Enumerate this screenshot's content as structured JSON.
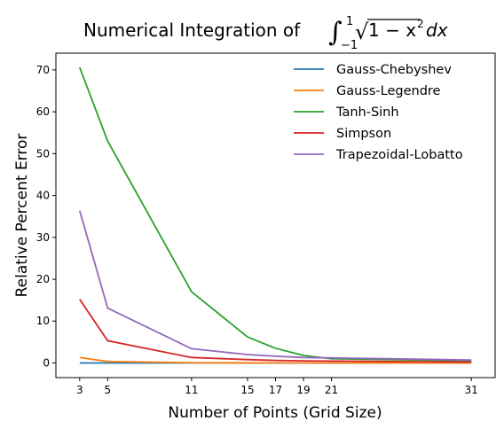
{
  "chart_data": {
    "type": "line",
    "title_prefix": "Numerical Integration of ",
    "title_math": {
      "integral": "∫",
      "upper": "1",
      "lower": "−1",
      "sqrt": "√",
      "radicand": "1 − x",
      "exponent": "2",
      "differential": "dx"
    },
    "xlabel": "Number of Points (Grid Size)",
    "ylabel": "Relative Percent Error",
    "xticks": [
      3,
      5,
      11,
      15,
      17,
      19,
      21,
      31
    ],
    "yticks": [
      0,
      10,
      20,
      30,
      40,
      50,
      60,
      70
    ],
    "xlim": [
      1.3,
      32.7
    ],
    "ylim": [
      -3.5,
      74
    ],
    "grid": false,
    "legend_position": "top-right",
    "x": [
      3,
      5,
      11,
      15,
      17,
      19,
      21,
      31
    ],
    "series": [
      {
        "name": "Gauss-Chebyshev",
        "color": "#1f77b4",
        "values": [
          0.0,
          0.0,
          0.0,
          0.0,
          0.0,
          0.0,
          0.0,
          0.0
        ]
      },
      {
        "name": "Gauss-Legendre",
        "color": "#ff7f0e",
        "values": [
          1.3,
          0.35,
          0.05,
          0.03,
          0.02,
          0.02,
          0.02,
          0.01
        ]
      },
      {
        "name": "Tanh-Sinh",
        "color": "#2ca02c",
        "values": [
          70.6,
          53.0,
          17.0,
          6.2,
          3.5,
          1.8,
          1.0,
          0.5
        ]
      },
      {
        "name": "Simpson",
        "color": "#d62728",
        "values": [
          15.2,
          5.3,
          1.3,
          0.8,
          0.6,
          0.5,
          0.45,
          0.2
        ]
      },
      {
        "name": "Trapezoidal-Lobatto",
        "color": "#9467bd",
        "values": [
          36.4,
          13.1,
          3.4,
          2.0,
          1.6,
          1.3,
          1.2,
          0.7
        ]
      }
    ]
  }
}
